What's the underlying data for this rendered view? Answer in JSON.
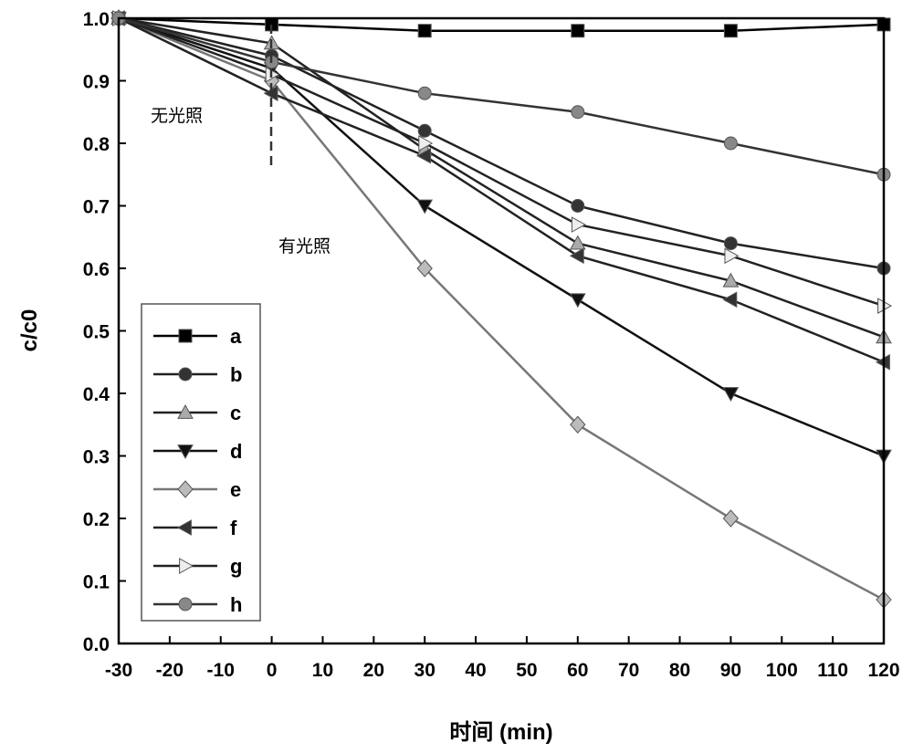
{
  "chart_data": {
    "type": "line",
    "xlabel": "时间 (min)",
    "ylabel": "c/c0",
    "xlim": [
      -30,
      120
    ],
    "ylim": [
      0,
      1.0
    ],
    "xticks": [
      -30,
      -20,
      -10,
      0,
      10,
      20,
      30,
      40,
      50,
      60,
      70,
      80,
      90,
      100,
      110,
      120
    ],
    "yticks": [
      0.0,
      0.1,
      0.2,
      0.3,
      0.4,
      0.5,
      0.6,
      0.7,
      0.8,
      0.9,
      1.0
    ],
    "legend_position": "bottom-left",
    "annotations": {
      "dark": "无光照",
      "light": "有光照"
    },
    "x": [
      -30,
      0,
      30,
      60,
      90,
      120
    ],
    "series": [
      {
        "name": "a",
        "marker": "square",
        "color": "#000000",
        "values": [
          1.0,
          0.99,
          0.98,
          0.98,
          0.98,
          0.99
        ]
      },
      {
        "name": "b",
        "marker": "circle",
        "color": "#333333",
        "values": [
          1.0,
          0.94,
          0.82,
          0.7,
          0.64,
          0.6
        ]
      },
      {
        "name": "c",
        "marker": "triangle-up",
        "color": "#aaaaaa",
        "values": [
          1.0,
          0.96,
          0.79,
          0.64,
          0.58,
          0.49
        ]
      },
      {
        "name": "d",
        "marker": "triangle-down",
        "color": "#111111",
        "values": [
          1.0,
          0.92,
          0.7,
          0.55,
          0.4,
          0.3
        ]
      },
      {
        "name": "e",
        "marker": "diamond",
        "color": "#bbbbbb",
        "values": [
          1.0,
          0.9,
          0.6,
          0.35,
          0.2,
          0.07
        ]
      },
      {
        "name": "f",
        "marker": "triangle-left",
        "color": "#333333",
        "values": [
          1.0,
          0.88,
          0.78,
          0.62,
          0.55,
          0.45
        ]
      },
      {
        "name": "g",
        "marker": "triangle-right",
        "color": "#eeeeee",
        "values": [
          1.0,
          0.91,
          0.8,
          0.67,
          0.62,
          0.54
        ]
      },
      {
        "name": "h",
        "marker": "circle",
        "color": "#888888",
        "values": [
          1.0,
          0.93,
          0.88,
          0.85,
          0.8,
          0.75
        ]
      }
    ]
  }
}
